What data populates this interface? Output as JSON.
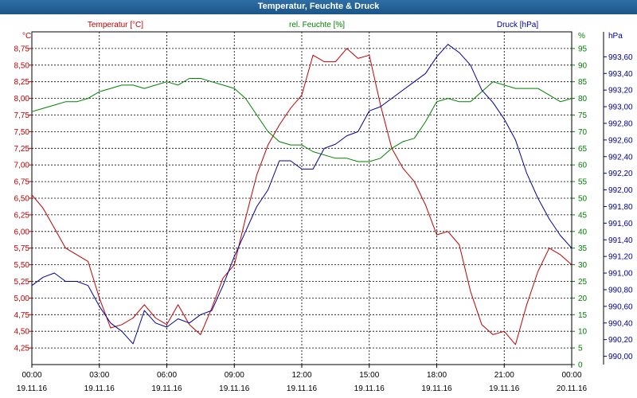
{
  "window": {
    "title": "Temperatur, Feuchte & Druck"
  },
  "chart_data": {
    "type": "line",
    "title": "Temperatur, Feuchte & Druck",
    "grid": true,
    "x": {
      "range": [
        "19.11.16 00:00",
        "20.11.16 00:00"
      ],
      "tick_times": [
        "00:00",
        "03:00",
        "06:00",
        "09:00",
        "12:00",
        "15:00",
        "18:00",
        "21:00",
        "00:00"
      ],
      "tick_dates": [
        "19.11.16",
        "19.11.16",
        "19.11.16",
        "19.11.16",
        "19.11.16",
        "19.11.16",
        "19.11.16",
        "19.11.16",
        "20.11.16"
      ]
    },
    "axes": {
      "temperature": {
        "label": "Temperatur [°C]",
        "unit": "°C",
        "range": [
          4.0,
          9.0
        ],
        "ticks": [
          "4,25",
          "4,50",
          "4,75",
          "5,00",
          "5,25",
          "5,50",
          "5,75",
          "6,00",
          "6,25",
          "6,50",
          "6,75",
          "7,00",
          "7,25",
          "7,50",
          "7,75",
          "8,00",
          "8,25",
          "8,50",
          "8,75"
        ],
        "color": "#c00000"
      },
      "humidity": {
        "label": "rel. Feuchte [%]",
        "unit": "%",
        "range": [
          0,
          100
        ],
        "ticks": [
          "0",
          "5",
          "10",
          "15",
          "20",
          "25",
          "30",
          "35",
          "40",
          "45",
          "50",
          "55",
          "60",
          "65",
          "70",
          "75",
          "80",
          "85",
          "90",
          "95"
        ],
        "color": "#008000"
      },
      "pressure": {
        "label": "Druck [hPa]",
        "unit": "hPa",
        "range": [
          989.9,
          993.9
        ],
        "ticks": [
          "990,00",
          "990,20",
          "990,40",
          "990,60",
          "990,80",
          "991,00",
          "991,20",
          "991,40",
          "991,60",
          "991,80",
          "992,00",
          "992,20",
          "992,40",
          "992,60",
          "992,80",
          "993,00",
          "993,20",
          "993,40",
          "993,60"
        ],
        "color": "#000099"
      }
    },
    "series": [
      {
        "name": "Temperatur [°C]",
        "axis": "temperature",
        "color": "#c00000",
        "hours": [
          0,
          0.5,
          1,
          1.5,
          2,
          2.5,
          3,
          3.5,
          4,
          4.5,
          5,
          5.5,
          6,
          6.5,
          7,
          7.5,
          8,
          8.5,
          9,
          9.5,
          10,
          10.5,
          11,
          11.5,
          12,
          12.5,
          13,
          13.5,
          14,
          14.5,
          15,
          15.5,
          16,
          16.5,
          17,
          17.5,
          18,
          18.5,
          19,
          19.5,
          20,
          20.5,
          21,
          21.5,
          22,
          22.5,
          23,
          23.5,
          24
        ],
        "values": [
          6.55,
          6.35,
          6.05,
          5.75,
          5.65,
          5.55,
          5.0,
          4.55,
          4.6,
          4.7,
          4.9,
          4.7,
          4.6,
          4.9,
          4.6,
          4.45,
          4.85,
          5.3,
          5.5,
          6.2,
          6.85,
          7.3,
          7.6,
          7.85,
          8.05,
          8.65,
          8.55,
          8.55,
          8.75,
          8.6,
          8.65,
          7.9,
          7.25,
          6.95,
          6.75,
          6.4,
          5.95,
          6.0,
          5.8,
          5.1,
          4.6,
          4.45,
          4.5,
          4.3,
          4.9,
          5.4,
          5.75,
          5.65,
          5.5
        ]
      },
      {
        "name": "rel. Feuchte [%]",
        "axis": "humidity",
        "color": "#008000",
        "hours": [
          0,
          0.5,
          1,
          1.5,
          2,
          2.5,
          3,
          3.5,
          4,
          4.5,
          5,
          5.5,
          6,
          6.5,
          7,
          7.5,
          8,
          8.5,
          9,
          9.5,
          10,
          10.5,
          11,
          11.5,
          12,
          12.5,
          13,
          13.5,
          14,
          14.5,
          15,
          15.5,
          16,
          16.5,
          17,
          17.5,
          18,
          18.5,
          19,
          19.5,
          20,
          20.5,
          21,
          21.5,
          22,
          22.5,
          23,
          23.5,
          24
        ],
        "values": [
          76,
          77,
          78,
          79,
          79,
          80,
          82,
          83,
          84,
          84,
          83,
          84,
          85,
          84,
          86,
          86,
          85,
          84,
          83,
          80,
          75,
          70,
          67,
          66,
          66,
          64,
          63,
          62,
          62,
          61,
          61,
          62,
          65,
          67,
          68,
          73,
          79,
          80,
          79,
          79,
          82,
          85,
          84,
          83,
          83,
          83,
          81,
          79,
          80
        ]
      },
      {
        "name": "Druck [hPa]",
        "axis": "pressure",
        "color": "#000099",
        "hours": [
          0,
          0.5,
          1,
          1.5,
          2,
          2.5,
          3,
          3.5,
          4,
          4.5,
          5,
          5.5,
          6,
          6.5,
          7,
          7.5,
          8,
          8.5,
          9,
          9.5,
          10,
          10.5,
          11,
          11.5,
          12,
          12.5,
          13,
          13.5,
          14,
          14.5,
          15,
          15.5,
          16,
          16.5,
          17,
          17.5,
          18,
          18.5,
          19,
          19.5,
          20,
          20.5,
          21,
          21.5,
          22,
          22.5,
          23,
          23.5,
          24
        ],
        "values": [
          990.85,
          990.95,
          991.0,
          990.9,
          990.9,
          990.85,
          990.6,
          990.4,
          990.3,
          990.15,
          990.55,
          990.4,
          990.35,
          990.45,
          990.4,
          990.5,
          990.55,
          990.85,
          991.2,
          991.5,
          991.8,
          992.0,
          992.35,
          992.35,
          992.25,
          992.25,
          992.5,
          992.55,
          992.65,
          992.7,
          992.95,
          993.0,
          993.1,
          993.2,
          993.3,
          993.4,
          993.6,
          993.75,
          993.65,
          993.5,
          993.2,
          993.05,
          992.85,
          992.6,
          992.2,
          991.9,
          991.65,
          991.45,
          991.3
        ]
      }
    ]
  }
}
